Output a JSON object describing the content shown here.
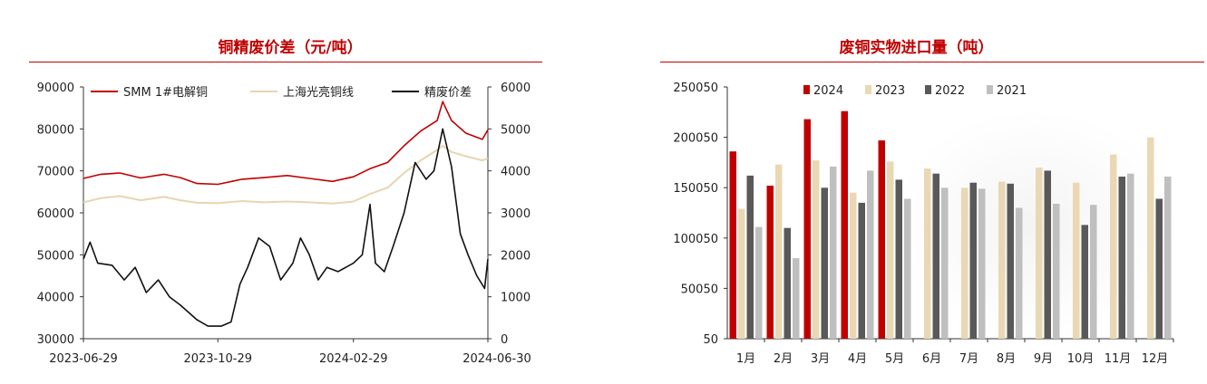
{
  "colors": {
    "title_red": "#c00000",
    "smm": "#c00000",
    "shanghai": "#e8d5b0",
    "spread": "#111111",
    "y2024": "#c00000",
    "y2023": "#ead8b4",
    "y2022": "#595959",
    "y2021": "#bfbfbf"
  },
  "chart_data": [
    {
      "type": "line",
      "title": "铜精废价差（元/吨）",
      "x_ticks": [
        "2023-06-29",
        "2023-10-29",
        "2024-02-29",
        "2024-06-30"
      ],
      "x_range": [
        "2023-06-29",
        "2024-06-30"
      ],
      "y_left": {
        "range": [
          30000,
          90000
        ],
        "ticks": [
          "30000",
          "40000",
          "50000",
          "60000",
          "70000",
          "80000",
          "90000"
        ]
      },
      "y_right": {
        "range": [
          0,
          6000
        ],
        "ticks": [
          "0",
          "1000",
          "2000",
          "3000",
          "4000",
          "5000",
          "6000"
        ]
      },
      "legend": [
        "SMM 1#电解铜",
        "上海光亮铜线",
        "精废价差"
      ],
      "series": [
        {
          "name": "SMM 1#电解铜",
          "axis": "left",
          "points": [
            [
              "2023-06-29",
              68200
            ],
            [
              "2023-07-15",
              69200
            ],
            [
              "2023-08-01",
              69500
            ],
            [
              "2023-08-20",
              68300
            ],
            [
              "2023-09-10",
              69200
            ],
            [
              "2023-09-25",
              68400
            ],
            [
              "2023-10-10",
              67000
            ],
            [
              "2023-10-29",
              66800
            ],
            [
              "2023-11-20",
              68000
            ],
            [
              "2023-12-10",
              68400
            ],
            [
              "2023-12-31",
              68900
            ],
            [
              "2024-01-20",
              68200
            ],
            [
              "2024-02-10",
              67500
            ],
            [
              "2024-02-29",
              68600
            ],
            [
              "2024-03-15",
              70500
            ],
            [
              "2024-03-31",
              72000
            ],
            [
              "2024-04-15",
              76000
            ],
            [
              "2024-04-30",
              79500
            ],
            [
              "2024-05-15",
              82000
            ],
            [
              "2024-05-20",
              86500
            ],
            [
              "2024-05-28",
              82000
            ],
            [
              "2024-06-10",
              79000
            ],
            [
              "2024-06-25",
              77500
            ],
            [
              "2024-06-30",
              79800
            ]
          ]
        },
        {
          "name": "上海光亮铜线",
          "axis": "left",
          "points": [
            [
              "2023-06-29",
              62500
            ],
            [
              "2023-07-15",
              63500
            ],
            [
              "2023-08-01",
              64000
            ],
            [
              "2023-08-20",
              63000
            ],
            [
              "2023-09-10",
              63800
            ],
            [
              "2023-09-25",
              63000
            ],
            [
              "2023-10-10",
              62400
            ],
            [
              "2023-10-29",
              62300
            ],
            [
              "2023-11-20",
              62800
            ],
            [
              "2023-12-10",
              62500
            ],
            [
              "2023-12-31",
              62700
            ],
            [
              "2024-01-20",
              62500
            ],
            [
              "2024-02-10",
              62200
            ],
            [
              "2024-02-29",
              62700
            ],
            [
              "2024-03-15",
              64500
            ],
            [
              "2024-03-31",
              66000
            ],
            [
              "2024-04-15",
              69500
            ],
            [
              "2024-04-30",
              72500
            ],
            [
              "2024-05-15",
              75000
            ],
            [
              "2024-05-20",
              76000
            ],
            [
              "2024-05-28",
              74500
            ],
            [
              "2024-06-10",
              73500
            ],
            [
              "2024-06-25",
              72500
            ],
            [
              "2024-06-30",
              73000
            ]
          ]
        },
        {
          "name": "精废价差",
          "axis": "right",
          "points": [
            [
              "2023-06-29",
              1900
            ],
            [
              "2023-07-05",
              2300
            ],
            [
              "2023-07-12",
              1800
            ],
            [
              "2023-07-25",
              1750
            ],
            [
              "2023-08-05",
              1400
            ],
            [
              "2023-08-15",
              1700
            ],
            [
              "2023-08-25",
              1100
            ],
            [
              "2023-09-05",
              1400
            ],
            [
              "2023-09-15",
              1000
            ],
            [
              "2023-09-25",
              800
            ],
            [
              "2023-10-10",
              450
            ],
            [
              "2023-10-20",
              300
            ],
            [
              "2023-11-01",
              300
            ],
            [
              "2023-11-10",
              400
            ],
            [
              "2023-11-18",
              1300
            ],
            [
              "2023-11-25",
              1700
            ],
            [
              "2023-12-05",
              2400
            ],
            [
              "2023-12-15",
              2200
            ],
            [
              "2023-12-25",
              1400
            ],
            [
              "2024-01-05",
              1800
            ],
            [
              "2024-01-12",
              2400
            ],
            [
              "2024-01-20",
              2000
            ],
            [
              "2024-01-28",
              1400
            ],
            [
              "2024-02-05",
              1700
            ],
            [
              "2024-02-15",
              1600
            ],
            [
              "2024-02-29",
              1800
            ],
            [
              "2024-03-08",
              2000
            ],
            [
              "2024-03-15",
              3200
            ],
            [
              "2024-03-20",
              1800
            ],
            [
              "2024-03-28",
              1600
            ],
            [
              "2024-04-05",
              2200
            ],
            [
              "2024-04-15",
              3000
            ],
            [
              "2024-04-25",
              4200
            ],
            [
              "2024-05-05",
              3800
            ],
            [
              "2024-05-12",
              4000
            ],
            [
              "2024-05-20",
              5000
            ],
            [
              "2024-05-28",
              4100
            ],
            [
              "2024-06-05",
              2500
            ],
            [
              "2024-06-12",
              2000
            ],
            [
              "2024-06-20",
              1500
            ],
            [
              "2024-06-27",
              1200
            ],
            [
              "2024-06-30",
              1900
            ]
          ]
        }
      ]
    },
    {
      "type": "bar",
      "title": "废铜实物进口量（吨）",
      "categories": [
        "1月",
        "2月",
        "3月",
        "4月",
        "5月",
        "6月",
        "7月",
        "8月",
        "9月",
        "10月",
        "11月",
        "12月"
      ],
      "y_range": [
        50,
        250050
      ],
      "y_ticks": [
        "50",
        "50050",
        "100050",
        "150050",
        "200050",
        "250050"
      ],
      "legend": [
        "2024",
        "2023",
        "2022",
        "2021"
      ],
      "series": [
        {
          "name": "2024",
          "values": [
            186000,
            152000,
            218000,
            226000,
            197000,
            null,
            null,
            null,
            null,
            null,
            null,
            null
          ]
        },
        {
          "name": "2023",
          "values": [
            129000,
            173000,
            177000,
            145000,
            176000,
            169000,
            150000,
            156000,
            170000,
            155000,
            183000,
            200000
          ]
        },
        {
          "name": "2022",
          "values": [
            162000,
            110000,
            150000,
            135000,
            158000,
            164000,
            155000,
            154000,
            167000,
            113000,
            161000,
            139000
          ]
        },
        {
          "name": "2021",
          "values": [
            111000,
            80000,
            171000,
            167000,
            139000,
            150000,
            149000,
            130000,
            134000,
            133000,
            164000,
            161000
          ]
        }
      ]
    }
  ]
}
